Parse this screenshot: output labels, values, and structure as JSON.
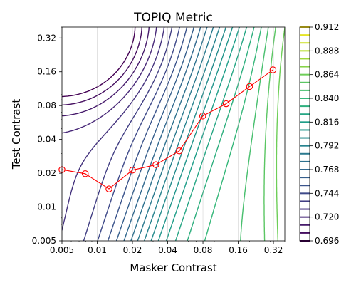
{
  "chart_data": {
    "type": "contour",
    "title": "TOPIQ Metric",
    "xlabel": "Masker Contrast",
    "ylabel": "Test Contrast",
    "xscale": "log",
    "yscale": "log",
    "xlim": [
      0.005,
      0.4
    ],
    "ylim": [
      0.005,
      0.4
    ],
    "x_ticks": [
      0.005,
      0.01,
      0.02,
      0.04,
      0.08,
      0.16,
      0.32
    ],
    "x_tick_labels": [
      "0.005",
      "0.01",
      "0.02",
      "0.04",
      "0.08",
      "0.16",
      "0.32"
    ],
    "y_ticks": [
      0.005,
      0.01,
      0.02,
      0.04,
      0.08,
      0.16,
      0.32
    ],
    "y_tick_labels": [
      "0.005",
      "0.01",
      "0.02",
      "0.04",
      "0.08",
      "0.16",
      "0.32"
    ],
    "grid": "vertical lines at major x ticks",
    "colormap": "viridis",
    "colorbar": {
      "min": 0.696,
      "max": 0.912,
      "step": 0.008,
      "ticks": [
        0.696,
        0.72,
        0.744,
        0.768,
        0.792,
        0.816,
        0.84,
        0.864,
        0.888,
        0.912
      ],
      "tick_labels": [
        "0.696",
        "0.720",
        "0.744",
        "0.768",
        "0.792",
        "0.816",
        "0.840",
        "0.864",
        "0.888",
        "0.912"
      ]
    },
    "threshold_series": {
      "color": "#ff0000",
      "marker": "open circle",
      "x": [
        0.005,
        0.0079,
        0.0126,
        0.02,
        0.0317,
        0.0502,
        0.0796,
        0.1262,
        0.2,
        0.317
      ],
      "y": [
        0.0215,
        0.0198,
        0.0145,
        0.0213,
        0.0238,
        0.0316,
        0.0646,
        0.0831,
        0.1183,
        0.1664
      ]
    }
  }
}
